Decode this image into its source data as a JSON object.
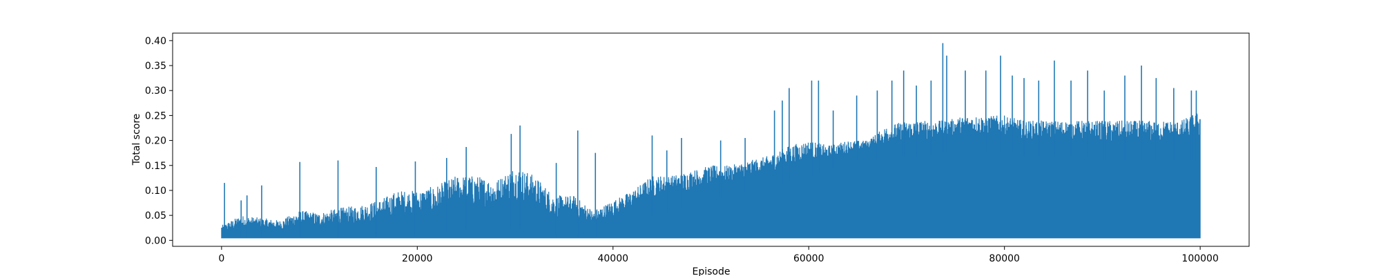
{
  "chart_data": {
    "type": "line",
    "title": "",
    "xlabel": "Episode",
    "ylabel": "Total score",
    "xlim": [
      -5000,
      105000
    ],
    "ylim": [
      -0.012,
      0.415
    ],
    "x_ticks": [
      0,
      20000,
      40000,
      60000,
      80000,
      100000
    ],
    "x_tick_labels": [
      "0",
      "20000",
      "40000",
      "60000",
      "80000",
      "100000"
    ],
    "y_ticks": [
      0.0,
      0.05,
      0.1,
      0.15,
      0.2,
      0.25,
      0.3,
      0.35,
      0.4
    ],
    "y_tick_labels": [
      "0.00",
      "0.05",
      "0.10",
      "0.15",
      "0.20",
      "0.25",
      "0.30",
      "0.35",
      "0.40"
    ],
    "grid": false,
    "legend": "none",
    "series": [
      {
        "color": "#1f77b4",
        "x": [
          0,
          2000,
          4000,
          6000,
          8000,
          10000,
          12000,
          14000,
          16000,
          18000,
          20000,
          22000,
          24000,
          26000,
          28000,
          30000,
          32000,
          34000,
          36000,
          38000,
          40000,
          42000,
          44000,
          46000,
          48000,
          50000,
          52000,
          54000,
          56000,
          58000,
          60000,
          62000,
          64000,
          66000,
          68000,
          70000,
          72000,
          74000,
          76000,
          78000,
          80000,
          82000,
          84000,
          86000,
          88000,
          90000,
          92000,
          94000,
          96000,
          98000,
          100000
        ],
        "upper": [
          0.03,
          0.05,
          0.045,
          0.04,
          0.06,
          0.055,
          0.065,
          0.07,
          0.08,
          0.1,
          0.1,
          0.11,
          0.13,
          0.13,
          0.12,
          0.15,
          0.13,
          0.09,
          0.09,
          0.06,
          0.08,
          0.1,
          0.13,
          0.13,
          0.14,
          0.15,
          0.15,
          0.16,
          0.17,
          0.19,
          0.2,
          0.19,
          0.2,
          0.2,
          0.23,
          0.24,
          0.24,
          0.24,
          0.25,
          0.25,
          0.25,
          0.24,
          0.24,
          0.24,
          0.24,
          0.24,
          0.24,
          0.24,
          0.24,
          0.24,
          0.26
        ],
        "base": [
          0.005,
          0.005,
          0.005,
          0.005,
          0.005,
          0.005,
          0.005,
          0.005,
          0.005,
          0.005,
          0.008,
          0.01,
          0.02,
          0.02,
          0.02,
          0.025,
          0.02,
          0.01,
          0.01,
          0.005,
          0.02,
          0.04,
          0.05,
          0.06,
          0.07,
          0.08,
          0.09,
          0.1,
          0.11,
          0.12,
          0.13,
          0.14,
          0.15,
          0.17,
          0.16,
          0.17,
          0.17,
          0.18,
          0.18,
          0.18,
          0.18,
          0.17,
          0.17,
          0.17,
          0.17,
          0.16,
          0.16,
          0.16,
          0.16,
          0.16,
          0.16
        ],
        "spikes": [
          {
            "x": 300,
            "y": 0.115
          },
          {
            "x": 2000,
            "y": 0.08
          },
          {
            "x": 2600,
            "y": 0.09
          },
          {
            "x": 4100,
            "y": 0.11
          },
          {
            "x": 8000,
            "y": 0.157
          },
          {
            "x": 11900,
            "y": 0.16
          },
          {
            "x": 15800,
            "y": 0.147
          },
          {
            "x": 19800,
            "y": 0.158
          },
          {
            "x": 23000,
            "y": 0.165
          },
          {
            "x": 25000,
            "y": 0.187
          },
          {
            "x": 29600,
            "y": 0.213
          },
          {
            "x": 30500,
            "y": 0.23
          },
          {
            "x": 34200,
            "y": 0.155
          },
          {
            "x": 36400,
            "y": 0.22
          },
          {
            "x": 38200,
            "y": 0.175
          },
          {
            "x": 44000,
            "y": 0.21
          },
          {
            "x": 45500,
            "y": 0.18
          },
          {
            "x": 47000,
            "y": 0.205
          },
          {
            "x": 51000,
            "y": 0.2
          },
          {
            "x": 53500,
            "y": 0.205
          },
          {
            "x": 56500,
            "y": 0.26
          },
          {
            "x": 57300,
            "y": 0.28
          },
          {
            "x": 58000,
            "y": 0.305
          },
          {
            "x": 60300,
            "y": 0.32
          },
          {
            "x": 61000,
            "y": 0.32
          },
          {
            "x": 62500,
            "y": 0.26
          },
          {
            "x": 64900,
            "y": 0.29
          },
          {
            "x": 67000,
            "y": 0.3
          },
          {
            "x": 68500,
            "y": 0.32
          },
          {
            "x": 69700,
            "y": 0.34
          },
          {
            "x": 71000,
            "y": 0.31
          },
          {
            "x": 72500,
            "y": 0.32
          },
          {
            "x": 73700,
            "y": 0.395
          },
          {
            "x": 74100,
            "y": 0.37
          },
          {
            "x": 76000,
            "y": 0.34
          },
          {
            "x": 78100,
            "y": 0.34
          },
          {
            "x": 79600,
            "y": 0.37
          },
          {
            "x": 80800,
            "y": 0.33
          },
          {
            "x": 82000,
            "y": 0.325
          },
          {
            "x": 83500,
            "y": 0.32
          },
          {
            "x": 85100,
            "y": 0.36
          },
          {
            "x": 86800,
            "y": 0.32
          },
          {
            "x": 88500,
            "y": 0.34
          },
          {
            "x": 90200,
            "y": 0.3
          },
          {
            "x": 92300,
            "y": 0.33
          },
          {
            "x": 94000,
            "y": 0.35
          },
          {
            "x": 95500,
            "y": 0.325
          },
          {
            "x": 97300,
            "y": 0.305
          },
          {
            "x": 99100,
            "y": 0.3
          },
          {
            "x": 99600,
            "y": 0.3
          }
        ]
      }
    ]
  }
}
